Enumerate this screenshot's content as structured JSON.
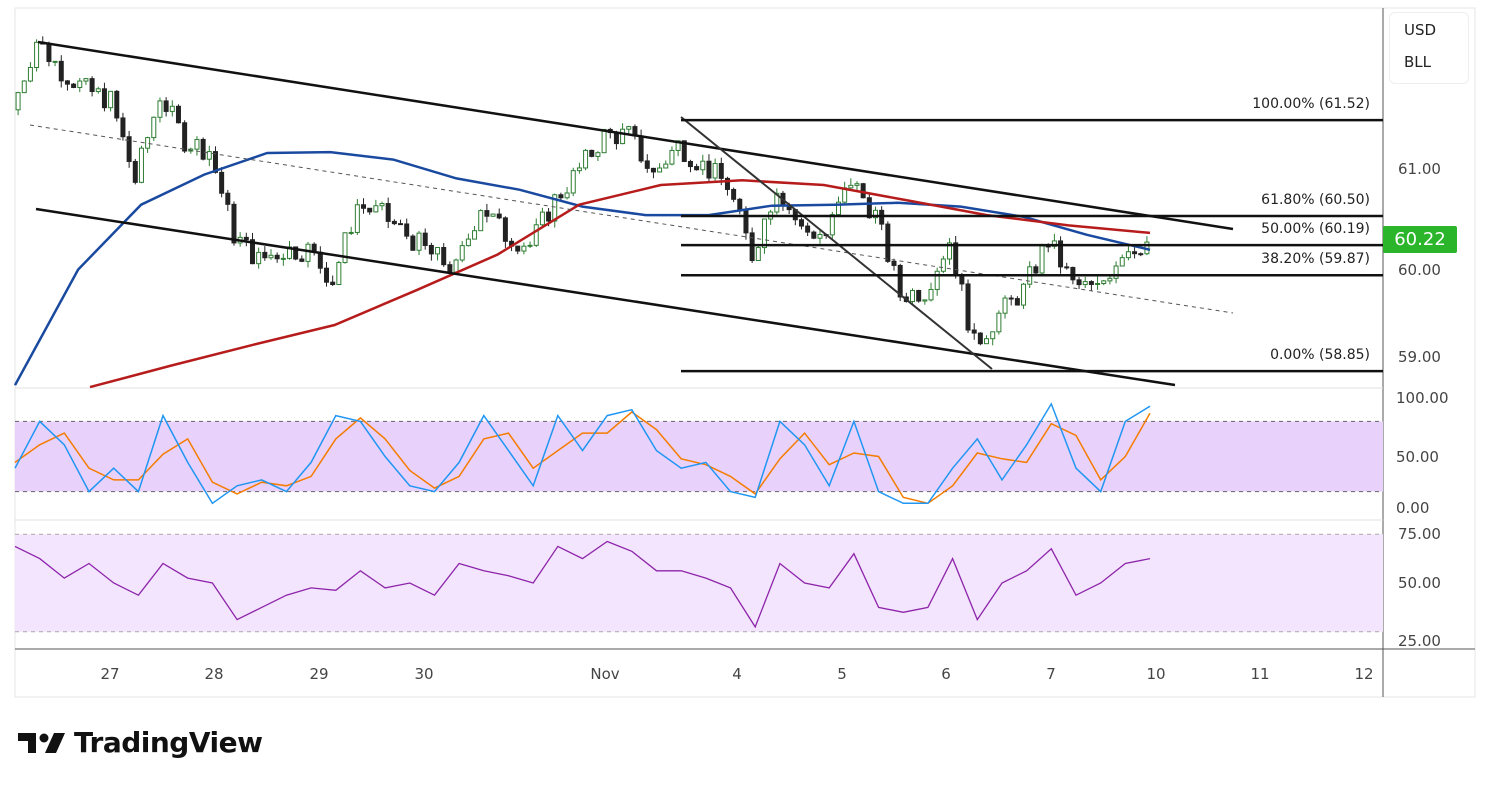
{
  "legend": {
    "currency": "USD",
    "symbol": "BLL"
  },
  "last_price": "60.22",
  "brand": "TradingView",
  "colors": {
    "up": "#2e7d32",
    "down": "#222222",
    "ma_fast": "#1a4aa0",
    "ma_slow": "#b71c1c",
    "stoch_k": "#2196f3",
    "stoch_d": "#f57c00",
    "rsi": "#8e24aa",
    "price_tag": "#2bb52b"
  },
  "chart_data": [
    {
      "type": "candlestick",
      "pane": "price",
      "y_ticks": [
        "61.00",
        "60.00",
        "59.00"
      ],
      "y_tick_values": [
        61,
        60,
        59
      ],
      "x_ticks": [
        "27",
        "28",
        "29",
        "30",
        "Nov",
        "4",
        "5",
        "6",
        "7",
        "10",
        "11",
        "12"
      ],
      "closes": [
        61.63,
        62.37,
        62.05,
        61.84,
        61.73,
        60.88,
        61.79,
        61.31,
        61.2,
        60.3,
        60.03,
        60.14,
        60.14,
        59.82,
        60.62,
        60.51,
        60.3,
        60.09,
        59.93,
        60.62,
        60.3,
        60.19,
        60.67,
        60.99,
        61.36,
        61.36,
        60.94,
        61.26,
        61.04,
        60.83,
        60.09,
        60.83,
        60.35,
        60.3,
        60.88,
        60.51,
        59.66,
        59.71,
        60.24,
        59.13,
        59.45,
        59.71,
        60.24,
        59.77,
        59.71,
        60.14,
        60.22
      ],
      "ma_fast": [
        58.7,
        59.93,
        60.62,
        60.94,
        61.17,
        61.18,
        61.1,
        60.9,
        60.78,
        60.6,
        60.51,
        60.51,
        60.61,
        60.62,
        60.64,
        60.6,
        60.49,
        60.3,
        60.14
      ],
      "ma_slow": [
        58.68,
        58.91,
        59.13,
        59.34,
        59.71,
        60.09,
        60.62,
        60.83,
        60.88,
        60.83,
        60.67,
        60.51,
        60.4,
        60.32
      ],
      "fibonacci": [
        {
          "label": "100.00% (61.52)",
          "price": 61.52
        },
        {
          "label": "61.80% (60.50)",
          "price": 60.5
        },
        {
          "label": "50.00% (60.19)",
          "price": 60.19
        },
        {
          "label": "38.20% (59.87)",
          "price": 59.87
        },
        {
          "label": "0.00% (58.85)",
          "price": 58.85
        }
      ]
    },
    {
      "type": "line",
      "pane": "stochastic",
      "y_ticks": [
        "100.00",
        "50.00",
        "0.00"
      ],
      "bands": [
        20,
        80
      ],
      "ylim": [
        0,
        100
      ],
      "k": [
        40,
        80,
        60,
        20,
        40,
        20,
        85,
        45,
        10,
        25,
        30,
        20,
        45,
        85,
        80,
        50,
        25,
        20,
        45,
        85,
        55,
        25,
        85,
        55,
        85,
        90,
        55,
        40,
        45,
        20,
        15,
        80,
        60,
        25,
        80,
        20,
        10,
        10,
        40,
        65,
        30,
        60,
        95,
        40,
        20,
        80,
        93
      ],
      "d": [
        45,
        60,
        70,
        40,
        30,
        30,
        52,
        65,
        28,
        18,
        28,
        25,
        33,
        65,
        83,
        65,
        38,
        23,
        33,
        65,
        70,
        40,
        55,
        70,
        70,
        88,
        73,
        48,
        43,
        33,
        18,
        48,
        70,
        43,
        53,
        50,
        15,
        10,
        25,
        53,
        48,
        45,
        78,
        68,
        30,
        50,
        87
      ]
    },
    {
      "type": "line",
      "pane": "rsi",
      "y_ticks": [
        "75.00",
        "50.00",
        "25.00"
      ],
      "bands": [
        30,
        70
      ],
      "ylim": [
        25,
        75
      ],
      "values": [
        65,
        60,
        52,
        58,
        50,
        45,
        58,
        52,
        50,
        35,
        40,
        45,
        48,
        47,
        55,
        48,
        50,
        45,
        58,
        55,
        53,
        50,
        65,
        60,
        67,
        63,
        55,
        55,
        52,
        48,
        32,
        58,
        50,
        48,
        62,
        40,
        38,
        40,
        60,
        35,
        50,
        55,
        64,
        45,
        50,
        58,
        60
      ]
    }
  ]
}
